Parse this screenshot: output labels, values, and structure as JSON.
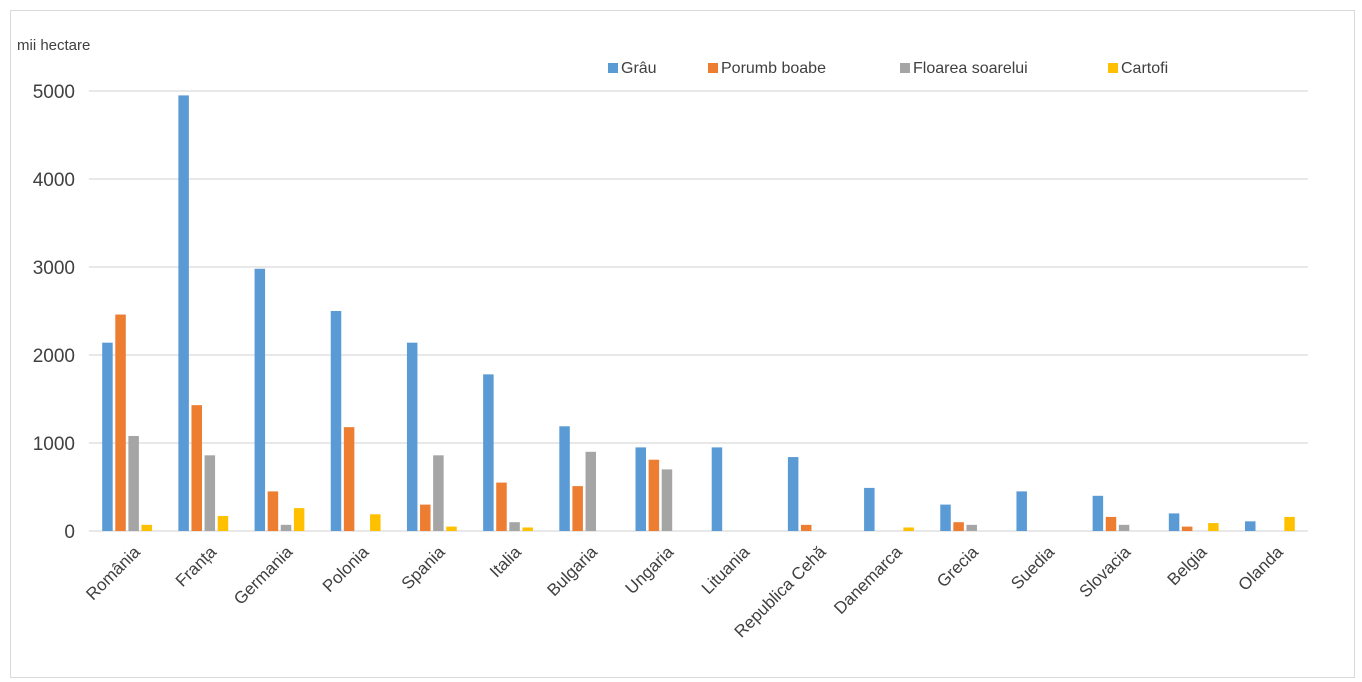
{
  "chart_data": {
    "type": "bar",
    "ylabel": "mii hectare",
    "ylim": [
      0,
      5000
    ],
    "yticks": [
      "0",
      "1000",
      "2000",
      "3000",
      "4000",
      "5000"
    ],
    "ytick_values": [
      0,
      1000,
      2000,
      3000,
      4000,
      5000
    ],
    "grid": true,
    "legend_position": "top-right",
    "categories": [
      "România",
      "Franța",
      "Germania",
      "Polonia",
      "Spania",
      "Italia",
      "Bulgaria",
      "Ungaria",
      "Lituania",
      "Republica Cehă",
      "Danemarca",
      "Grecia",
      "Suedia",
      "Slovacia",
      "Belgia",
      "Olanda"
    ],
    "series": [
      {
        "name": "Grâu",
        "color": "#5b9bd5",
        "values": [
          2140,
          4950,
          2980,
          2500,
          2140,
          1780,
          1190,
          950,
          950,
          840,
          490,
          300,
          450,
          400,
          200,
          110
        ]
      },
      {
        "name": "Porumb boabe",
        "color": "#ed7d31",
        "values": [
          2460,
          1430,
          450,
          1180,
          300,
          550,
          510,
          810,
          0,
          70,
          0,
          100,
          0,
          160,
          50,
          0
        ]
      },
      {
        "name": "Floarea soarelui",
        "color": "#a5a5a5",
        "values": [
          1080,
          860,
          70,
          0,
          860,
          100,
          900,
          700,
          0,
          0,
          0,
          70,
          0,
          70,
          0,
          0
        ]
      },
      {
        "name": "Cartofi",
        "color": "#ffc000",
        "values": [
          70,
          170,
          260,
          190,
          50,
          40,
          0,
          0,
          0,
          0,
          40,
          0,
          0,
          0,
          90,
          160
        ]
      }
    ]
  }
}
